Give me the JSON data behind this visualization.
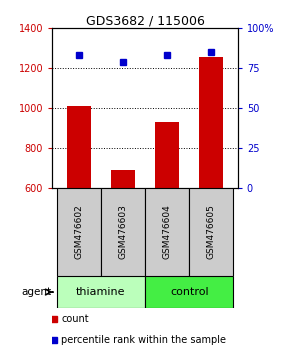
{
  "title": "GDS3682 / 115006",
  "samples": [
    "GSM476602",
    "GSM476603",
    "GSM476604",
    "GSM476605"
  ],
  "counts": [
    1010,
    690,
    930,
    1255
  ],
  "percentile_ranks": [
    83,
    79,
    83,
    85
  ],
  "ylim_left": [
    600,
    1400
  ],
  "ylim_right": [
    0,
    100
  ],
  "yticks_left": [
    600,
    800,
    1000,
    1200,
    1400
  ],
  "yticks_right": [
    0,
    25,
    50,
    75,
    100
  ],
  "bar_color": "#cc0000",
  "dot_color": "#0000cc",
  "bar_bottom": 600,
  "tick_label_color_left": "#cc0000",
  "tick_label_color_right": "#0000cc",
  "agent_label": "agent",
  "legend_count_label": "count",
  "legend_pct_label": "percentile rank within the sample",
  "background_plot": "#ffffff",
  "background_label": "#cccccc",
  "background_group_thiamine": "#bbffbb",
  "background_group_control": "#44ee44",
  "right_pct_label": "100%",
  "grid_yticks": [
    800,
    1000,
    1200
  ]
}
